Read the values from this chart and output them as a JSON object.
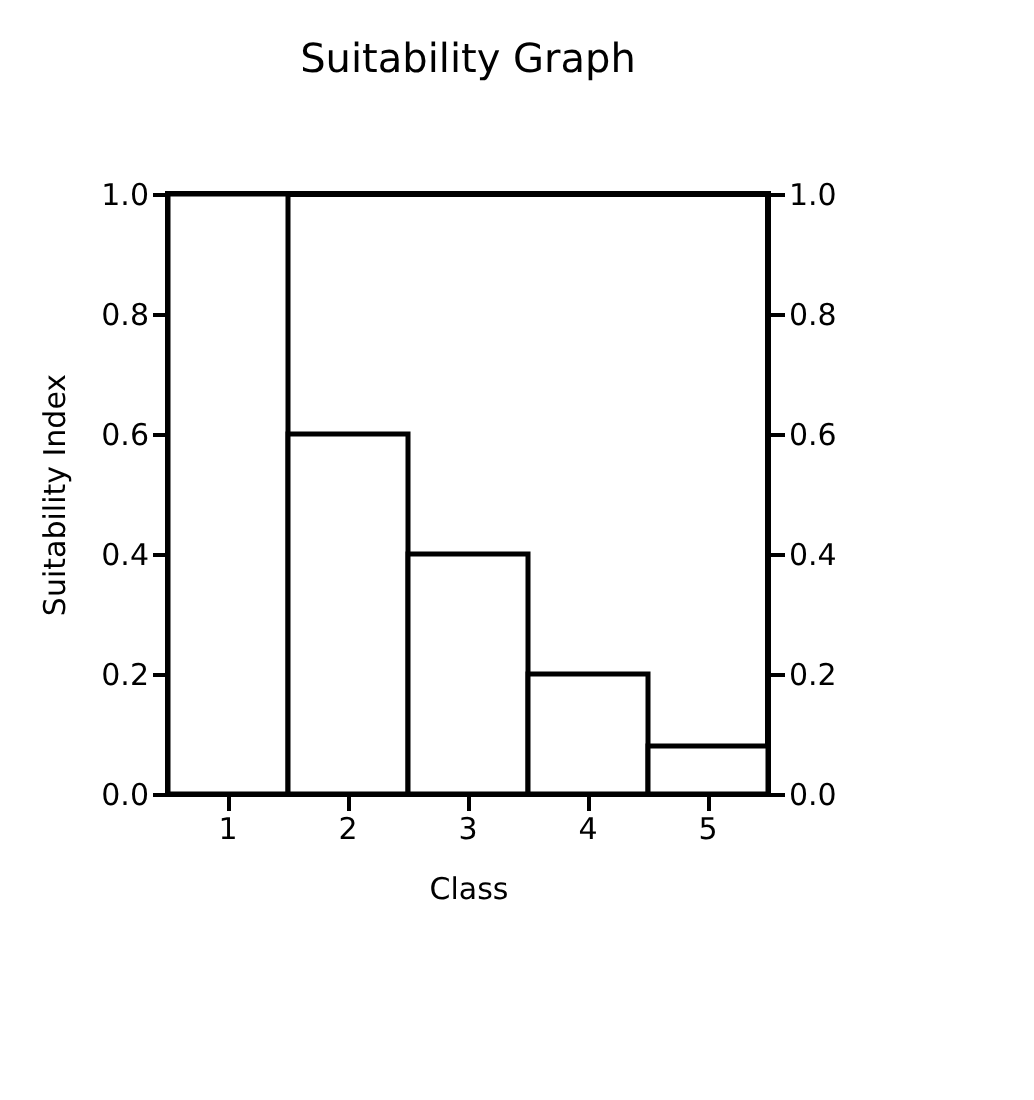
{
  "chart_data": {
    "type": "bar",
    "title": "Suitability Graph",
    "xlabel": "Class",
    "ylabel": "Suitability Index",
    "categories": [
      "1",
      "2",
      "3",
      "4",
      "5"
    ],
    "values": [
      1.0,
      0.6,
      0.4,
      0.2,
      0.08
    ],
    "color": "#ffffff",
    "ylim": [
      0,
      1
    ],
    "yticks": [
      {
        "value": 0,
        "label": "0.0"
      },
      0.2,
      0.4,
      0.6,
      0.8,
      {
        "value": 1,
        "label": "1.0"
      }
    ],
    "y2lim": [
      0,
      1
    ],
    "y2ticks": [
      {
        "value": 0,
        "label": "0.0"
      },
      0.2,
      0.4,
      0.6,
      0.8,
      {
        "value": 1,
        "label": "1.0"
      }
    ],
    "grid": false
  }
}
